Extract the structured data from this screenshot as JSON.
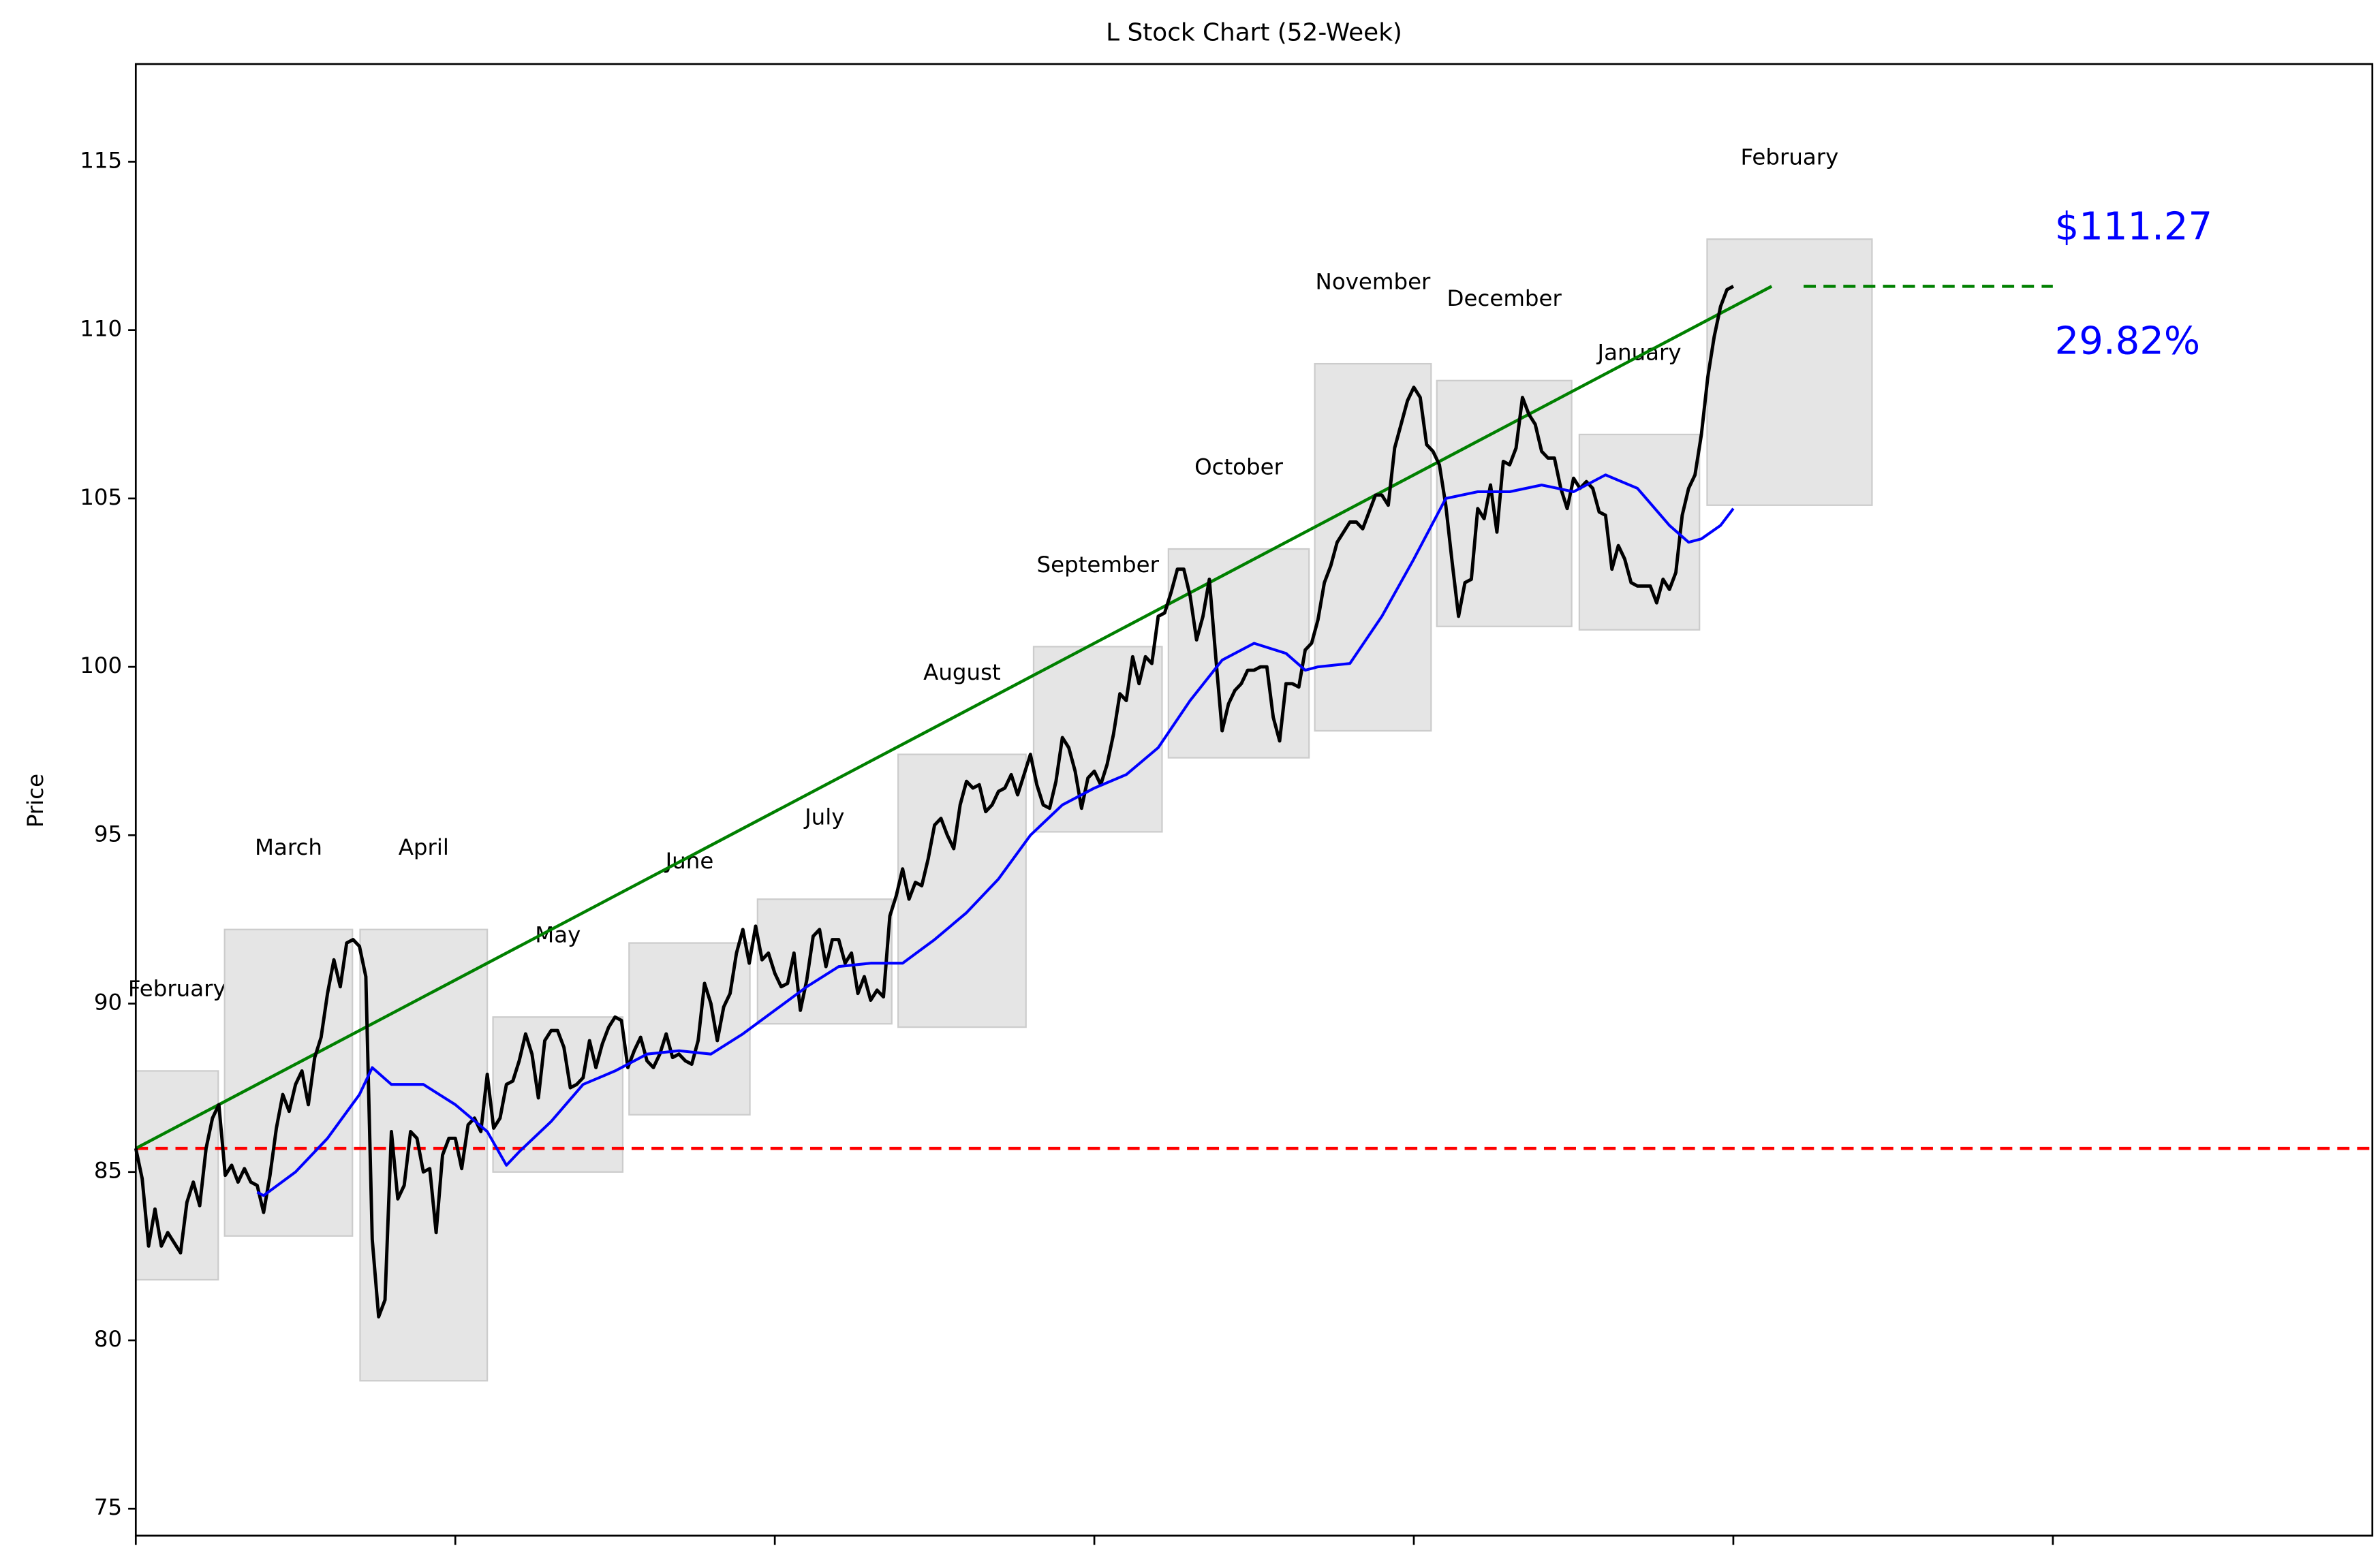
{
  "chart_data": {
    "type": "line",
    "title": "L Stock Chart (52-Week)",
    "ylabel": "Price",
    "xlim": [
      0,
      350
    ],
    "ylim": [
      74.2,
      117.9
    ],
    "xticks": [
      0,
      50,
      100,
      150,
      200,
      250,
      300
    ],
    "yticks": [
      75,
      80,
      85,
      90,
      95,
      100,
      105,
      110,
      115
    ],
    "grid": false,
    "series": [
      {
        "color": "#000000",
        "x": [
          0,
          1,
          2,
          3,
          4,
          5,
          6,
          7,
          8,
          9,
          10,
          11,
          12,
          13,
          14,
          15,
          16,
          17,
          18,
          19,
          20,
          21,
          22,
          23,
          24,
          25,
          26,
          27,
          28,
          29,
          30,
          31,
          32,
          33,
          34,
          35,
          36,
          37,
          38,
          39,
          40,
          41,
          42,
          43,
          44,
          45,
          46,
          47,
          48,
          49,
          50,
          51,
          52,
          53,
          54,
          55,
          56,
          57,
          58,
          59,
          60,
          61,
          62,
          63,
          64,
          65,
          66,
          67,
          68,
          69,
          70,
          71,
          72,
          73,
          74,
          75,
          76,
          77,
          78,
          79,
          80,
          81,
          82,
          83,
          84,
          85,
          86,
          87,
          88,
          89,
          90,
          91,
          92,
          93,
          94,
          95,
          96,
          97,
          98,
          99,
          100,
          101,
          102,
          103,
          104,
          105,
          106,
          107,
          108,
          109,
          110,
          111,
          112,
          113,
          114,
          115,
          116,
          117,
          118,
          119,
          120,
          121,
          122,
          123,
          124,
          125,
          126,
          127,
          128,
          129,
          130,
          131,
          132,
          133,
          134,
          135,
          136,
          137,
          138,
          139,
          140,
          141,
          142,
          143,
          144,
          145,
          146,
          147,
          148,
          149,
          150,
          151,
          152,
          153,
          154,
          155,
          156,
          157,
          158,
          159,
          160,
          161,
          162,
          163,
          164,
          165,
          166,
          167,
          168,
          169,
          170,
          171,
          172,
          173,
          174,
          175,
          176,
          177,
          178,
          179,
          180,
          181,
          182,
          183,
          184,
          185,
          186,
          187,
          188,
          189,
          190,
          191,
          192,
          193,
          194,
          195,
          196,
          197,
          198,
          199,
          200,
          201,
          202,
          203,
          204,
          205,
          206,
          207,
          208,
          209,
          210,
          211,
          212,
          213,
          214,
          215,
          216,
          217,
          218,
          219,
          220,
          221,
          222,
          223,
          224,
          225,
          226,
          227,
          228,
          229,
          230,
          231,
          232,
          233,
          234,
          235,
          236,
          237,
          238,
          239,
          240,
          241,
          242,
          243,
          244,
          245,
          246,
          247,
          248,
          249,
          250
        ],
        "values": [
          85.7,
          84.8,
          82.8,
          83.9,
          82.8,
          83.2,
          82.9,
          82.6,
          84.1,
          84.7,
          84.0,
          85.7,
          86.6,
          87.0,
          84.9,
          85.2,
          84.7,
          85.1,
          84.7,
          84.6,
          83.8,
          84.9,
          86.3,
          87.3,
          86.8,
          87.6,
          88.0,
          87.0,
          88.4,
          89.0,
          90.3,
          91.3,
          90.5,
          91.8,
          91.9,
          91.7,
          90.8,
          83.0,
          80.7,
          81.2,
          86.2,
          84.2,
          84.6,
          86.2,
          86.0,
          85.0,
          85.1,
          83.2,
          85.5,
          86.0,
          86.0,
          85.1,
          86.4,
          86.6,
          86.2,
          87.9,
          86.3,
          86.6,
          87.6,
          87.7,
          88.3,
          89.1,
          88.5,
          87.2,
          88.9,
          89.2,
          89.2,
          88.7,
          87.5,
          87.6,
          87.8,
          88.9,
          88.1,
          88.8,
          89.3,
          89.6,
          89.5,
          88.1,
          88.6,
          89.0,
          88.3,
          88.1,
          88.5,
          89.1,
          88.4,
          88.5,
          88.3,
          88.2,
          88.9,
          90.6,
          90.0,
          88.9,
          89.9,
          90.3,
          91.5,
          92.2,
          91.2,
          92.3,
          91.3,
          91.5,
          90.9,
          90.5,
          90.6,
          91.5,
          89.8,
          90.7,
          92.0,
          92.2,
          91.1,
          91.9,
          91.9,
          91.2,
          91.5,
          90.3,
          90.8,
          90.1,
          90.4,
          90.2,
          92.6,
          93.2,
          94.0,
          93.1,
          93.6,
          93.5,
          94.3,
          95.3,
          95.5,
          95.0,
          94.6,
          95.9,
          96.6,
          96.4,
          96.5,
          95.7,
          95.9,
          96.3,
          96.4,
          96.8,
          96.2,
          96.8,
          97.4,
          96.5,
          95.9,
          95.8,
          96.6,
          97.9,
          97.6,
          96.9,
          95.8,
          96.7,
          96.9,
          96.5,
          97.1,
          98.0,
          99.2,
          99.0,
          100.3,
          99.5,
          100.3,
          100.1,
          101.5,
          101.6,
          102.2,
          102.9,
          102.9,
          102.1,
          100.8,
          101.5,
          102.6,
          100.3,
          98.1,
          98.9,
          99.3,
          99.5,
          99.9,
          99.9,
          100.0,
          100.0,
          98.5,
          97.8,
          99.5,
          99.5,
          99.4,
          100.5,
          100.7,
          101.4,
          102.5,
          103.0,
          103.7,
          104.0,
          104.3,
          104.3,
          104.1,
          104.6,
          105.1,
          105.1,
          104.8,
          106.5,
          107.2,
          107.9,
          108.3,
          108.0,
          106.6,
          106.4,
          106.0,
          104.8,
          103.1,
          101.5,
          102.5,
          102.6,
          104.7,
          104.4,
          105.4,
          104.0,
          106.1,
          106.0,
          106.5,
          108.0,
          107.5,
          107.2,
          106.4,
          106.2,
          106.2,
          105.3,
          104.7,
          105.6,
          105.3,
          105.5,
          105.3,
          104.6,
          104.5,
          102.9,
          103.6,
          103.2,
          102.5,
          102.4,
          102.4,
          102.4,
          101.9,
          102.6,
          102.3,
          102.8,
          104.5,
          105.3,
          105.7,
          106.9,
          108.6,
          109.8,
          110.7,
          111.2,
          111.3
        ]
      },
      {
        "color": "#0000ff",
        "x": [
          19,
          20,
          25,
          30,
          35,
          37,
          40,
          45,
          50,
          55,
          58,
          60,
          65,
          70,
          75,
          80,
          85,
          90,
          95,
          100,
          105,
          110,
          115,
          120,
          125,
          130,
          135,
          140,
          145,
          150,
          155,
          160,
          165,
          170,
          175,
          180,
          183,
          185,
          190,
          195,
          200,
          205,
          210,
          215,
          220,
          225,
          230,
          235,
          240,
          243,
          245,
          248,
          250
        ],
        "values": [
          84.4,
          84.3,
          85.0,
          86.0,
          87.3,
          88.1,
          87.6,
          87.6,
          87.0,
          86.2,
          85.2,
          85.6,
          86.5,
          87.6,
          88.0,
          88.5,
          88.6,
          88.5,
          89.1,
          89.8,
          90.5,
          91.1,
          91.2,
          91.2,
          91.9,
          92.7,
          93.7,
          95.0,
          95.9,
          96.4,
          96.8,
          97.6,
          99.0,
          100.2,
          100.7,
          100.4,
          99.9,
          100.0,
          100.1,
          101.5,
          103.2,
          105.0,
          105.2,
          105.2,
          105.4,
          105.2,
          105.7,
          105.3,
          104.2,
          103.7,
          103.8,
          104.2,
          104.7
        ]
      }
    ],
    "trend_line": {
      "color": "#008000",
      "x": [
        0,
        256
      ],
      "values": [
        85.7,
        111.3
      ]
    },
    "projection_line": {
      "color": "#008000",
      "dashed": true,
      "x": [
        261,
        300
      ],
      "values": [
        111.3,
        111.3
      ]
    },
    "reference_line": {
      "color": "#ff0000",
      "dashed": true,
      "value": 85.7
    },
    "months": [
      {
        "label": "February",
        "x": [
          0,
          12.9
        ],
        "y": [
          81.8,
          88.0
        ]
      },
      {
        "label": "March",
        "x": [
          13.9,
          33.9
        ],
        "y": [
          83.1,
          92.2
        ]
      },
      {
        "label": "April",
        "x": [
          35.1,
          55.0
        ],
        "y": [
          78.8,
          92.2
        ]
      },
      {
        "label": "May",
        "x": [
          55.9,
          76.2
        ],
        "y": [
          85.0,
          89.6
        ]
      },
      {
        "label": "June",
        "x": [
          77.2,
          96.1
        ],
        "y": [
          86.7,
          91.8
        ]
      },
      {
        "label": "July",
        "x": [
          97.3,
          118.3
        ],
        "y": [
          89.4,
          93.1
        ]
      },
      {
        "label": "August",
        "x": [
          119.3,
          139.3
        ],
        "y": [
          89.3,
          97.4
        ]
      },
      {
        "label": "September",
        "x": [
          140.5,
          160.6
        ],
        "y": [
          95.1,
          100.6
        ]
      },
      {
        "label": "October",
        "x": [
          161.6,
          183.6
        ],
        "y": [
          97.3,
          103.5
        ]
      },
      {
        "label": "November",
        "x": [
          184.5,
          202.7
        ],
        "y": [
          98.1,
          109.0
        ]
      },
      {
        "label": "December",
        "x": [
          203.6,
          224.7
        ],
        "y": [
          101.2,
          108.5
        ]
      },
      {
        "label": "January",
        "x": [
          225.9,
          244.7
        ],
        "y": [
          101.1,
          106.9
        ]
      },
      {
        "label": "February",
        "x": [
          245.9,
          271.7
        ],
        "y": [
          104.8,
          112.7
        ]
      }
    ],
    "annotations": [
      {
        "text": "$111.27",
        "x": 300.3,
        "y": 113.0,
        "color": "#0000ff"
      },
      {
        "text": "29.82%",
        "x": 300.3,
        "y": 109.6,
        "color": "#0000ff"
      }
    ]
  }
}
